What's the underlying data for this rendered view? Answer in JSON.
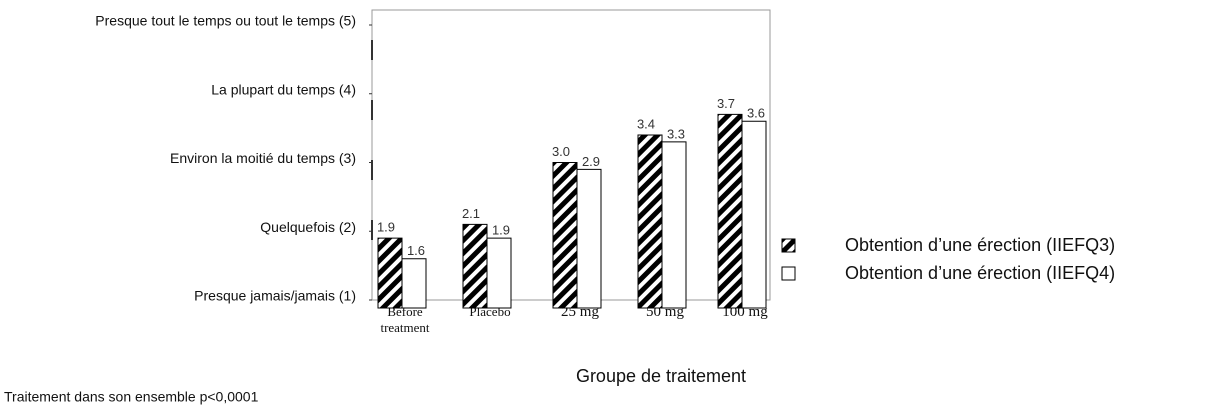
{
  "chart_data": {
    "type": "bar",
    "categories": [
      "Before treatment",
      "Placebo",
      "25 mg",
      "50 mg",
      "100 mg"
    ],
    "series": [
      {
        "name": "Obtention d’une érection (IIEFQ3)",
        "color": "#000000",
        "pattern": "hatch",
        "values": [
          1.9,
          2.1,
          3.0,
          3.4,
          3.7
        ],
        "value_labels": [
          "1.9",
          "2.1",
          "3.0",
          "3.4",
          "3.7"
        ]
      },
      {
        "name": "Obtention d’une érection (IIEFQ4)",
        "color": "#ffffff",
        "values": [
          1.6,
          1.9,
          2.9,
          3.3,
          3.6
        ],
        "value_labels": [
          "1.6",
          "1.9",
          "2.9",
          "3.3",
          "3.6"
        ]
      }
    ],
    "ylim": [
      1,
      5
    ],
    "yticks": [
      {
        "value": 1,
        "label": "Presque jamais/jamais (1)"
      },
      {
        "value": 2,
        "label": "Quelquefois (2)"
      },
      {
        "value": 3,
        "label": "Environ la moitié du temps (3)"
      },
      {
        "value": 4,
        "label": "La plupart du temps (4)"
      },
      {
        "value": 5,
        "label": "Presque tout le temps ou tout le temps (5)"
      }
    ],
    "x_label": "Groupe de traitement",
    "footnote": "Traitement dans son ensemble p<0,0001",
    "legend": "right"
  }
}
